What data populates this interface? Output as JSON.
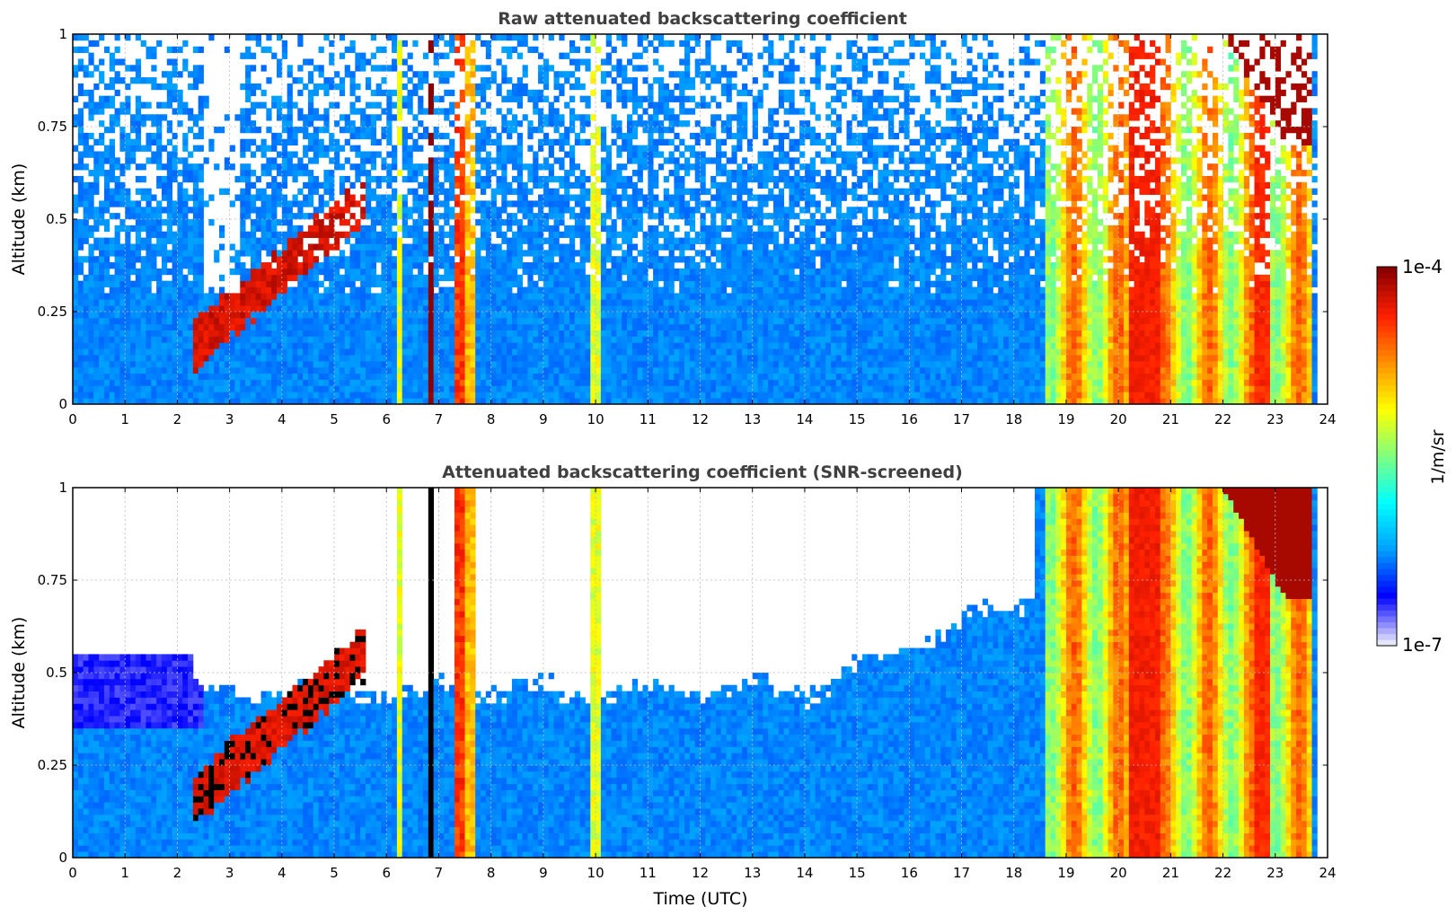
{
  "colors": {
    "jet": [
      "#e6e6fa",
      "#0000ff",
      "#00a0ff",
      "#00ffff",
      "#7fff7f",
      "#ffff00",
      "#ff9000",
      "#ff2000",
      "#8b0000"
    ],
    "grid": "#bbbbbb",
    "title": "#404040"
  },
  "colorbar": {
    "label": "1/m/sr",
    "top_tick": "1e-4",
    "bottom_tick": "1e-7",
    "scale": "log"
  },
  "chart_data": [
    {
      "type": "heatmap",
      "title": "Raw attenuated backscattering coefficient",
      "ylabel": "Altitude (km)",
      "xlabel": "",
      "xlim": [
        0,
        24
      ],
      "ylim": [
        0,
        1
      ],
      "x_ticks": [
        "0",
        "1",
        "2",
        "3",
        "4",
        "5",
        "6",
        "7",
        "8",
        "9",
        "10",
        "11",
        "12",
        "13",
        "14",
        "15",
        "16",
        "17",
        "18",
        "19",
        "20",
        "21",
        "22",
        "23",
        "24"
      ],
      "y_ticks": [
        "0",
        "0.25",
        "0.5",
        "0.75",
        "1"
      ],
      "grid": true,
      "screened": false,
      "value_units": "1/m/sr (log10 scale, -7 to -4)",
      "features": [
        {
          "name": "rising aerosol/cloud layer",
          "t_start": 2.3,
          "t_end": 5.5,
          "alt_start": 0.15,
          "alt_end": 0.55,
          "log_value": -4.1
        },
        {
          "name": "cloud bands 6-10 UTC",
          "times": [
            6.2,
            6.8,
            7.4,
            7.6,
            10.0
          ],
          "log_value": -4.2
        },
        {
          "name": "precipitation 18.6-23.7 UTC",
          "t_start": 18.6,
          "t_end": 23.7,
          "log_value": -4.7
        }
      ]
    },
    {
      "type": "heatmap",
      "title": "Attenuated backscattering coefficient (SNR-screened)",
      "ylabel": "Altitude (km)",
      "xlabel": "Time (UTC)",
      "xlim": [
        0,
        24
      ],
      "ylim": [
        0,
        1
      ],
      "x_ticks": [
        "0",
        "1",
        "2",
        "3",
        "4",
        "5",
        "6",
        "7",
        "8",
        "9",
        "10",
        "11",
        "12",
        "13",
        "14",
        "15",
        "16",
        "17",
        "18",
        "19",
        "20",
        "21",
        "22",
        "23",
        "24"
      ],
      "y_ticks": [
        "0",
        "0.25",
        "0.5",
        "0.75",
        "1"
      ],
      "grid": true,
      "screened": true,
      "value_units": "1/m/sr (log10 scale, -7 to -4)"
    }
  ]
}
